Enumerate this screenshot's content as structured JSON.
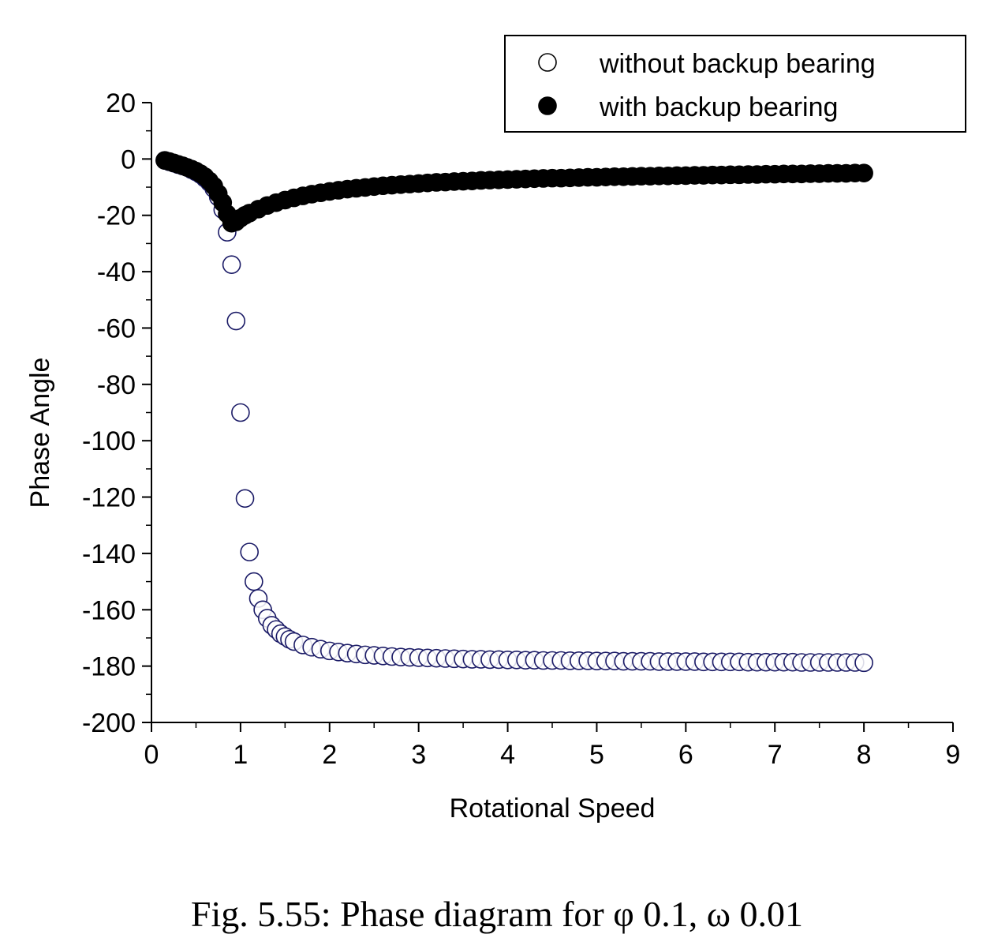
{
  "caption": "Fig. 5.55: Phase diagram for φ 0.1, ω 0.01",
  "chart_data": {
    "type": "scatter",
    "title": "",
    "xlabel": "Rotational Speed",
    "ylabel": "Phase Angle",
    "xlim": [
      0,
      9
    ],
    "ylim": [
      -200,
      20
    ],
    "xticks": [
      0,
      1,
      2,
      3,
      4,
      5,
      6,
      7,
      8,
      9
    ],
    "yticks": [
      20,
      0,
      -20,
      -40,
      -60,
      -80,
      -100,
      -120,
      -140,
      -160,
      -180,
      -200
    ],
    "grid": false,
    "legend_placement": "top-right",
    "series": [
      {
        "name": "without backup bearing",
        "marker": "open-circle",
        "color": "#1a1a66",
        "points": [
          [
            0.15,
            -0.5
          ],
          [
            0.2,
            -1.0
          ],
          [
            0.25,
            -1.5
          ],
          [
            0.3,
            -2.0
          ],
          [
            0.35,
            -2.5
          ],
          [
            0.4,
            -3.0
          ],
          [
            0.45,
            -3.8
          ],
          [
            0.5,
            -4.6
          ],
          [
            0.55,
            -5.5
          ],
          [
            0.6,
            -6.8
          ],
          [
            0.65,
            -8.3
          ],
          [
            0.7,
            -10.5
          ],
          [
            0.75,
            -13.5
          ],
          [
            0.8,
            -18.0
          ],
          [
            0.85,
            -26.0
          ],
          [
            0.9,
            -37.5
          ],
          [
            0.95,
            -57.5
          ],
          [
            1.0,
            -90.0
          ],
          [
            1.05,
            -120.5
          ],
          [
            1.1,
            -139.5
          ],
          [
            1.15,
            -150.0
          ],
          [
            1.2,
            -156.0
          ],
          [
            1.25,
            -160.0
          ],
          [
            1.3,
            -163.0
          ],
          [
            1.35,
            -165.5
          ],
          [
            1.4,
            -167.0
          ],
          [
            1.45,
            -168.5
          ],
          [
            1.5,
            -169.5
          ],
          [
            1.55,
            -170.5
          ],
          [
            1.6,
            -171.3
          ],
          [
            1.7,
            -172.5
          ],
          [
            1.8,
            -173.3
          ],
          [
            1.9,
            -174.0
          ],
          [
            2.0,
            -174.6
          ],
          [
            2.1,
            -175.0
          ],
          [
            2.2,
            -175.4
          ],
          [
            2.3,
            -175.7
          ],
          [
            2.4,
            -176.0
          ],
          [
            2.5,
            -176.2
          ],
          [
            2.6,
            -176.4
          ],
          [
            2.7,
            -176.6
          ],
          [
            2.8,
            -176.8
          ],
          [
            2.9,
            -176.9
          ],
          [
            3.0,
            -177.0
          ],
          [
            3.1,
            -177.1
          ],
          [
            3.2,
            -177.2
          ],
          [
            3.3,
            -177.3
          ],
          [
            3.4,
            -177.4
          ],
          [
            3.5,
            -177.5
          ],
          [
            3.6,
            -177.6
          ],
          [
            3.7,
            -177.6
          ],
          [
            3.8,
            -177.7
          ],
          [
            3.9,
            -177.7
          ],
          [
            4.0,
            -177.8
          ],
          [
            4.1,
            -177.8
          ],
          [
            4.2,
            -177.9
          ],
          [
            4.3,
            -177.9
          ],
          [
            4.4,
            -178.0
          ],
          [
            4.5,
            -178.0
          ],
          [
            4.6,
            -178.0
          ],
          [
            4.7,
            -178.1
          ],
          [
            4.8,
            -178.1
          ],
          [
            4.9,
            -178.1
          ],
          [
            5.0,
            -178.2
          ],
          [
            5.1,
            -178.2
          ],
          [
            5.2,
            -178.2
          ],
          [
            5.3,
            -178.3
          ],
          [
            5.4,
            -178.3
          ],
          [
            5.5,
            -178.3
          ],
          [
            5.6,
            -178.3
          ],
          [
            5.7,
            -178.4
          ],
          [
            5.8,
            -178.4
          ],
          [
            5.9,
            -178.4
          ],
          [
            6.0,
            -178.4
          ],
          [
            6.1,
            -178.4
          ],
          [
            6.2,
            -178.5
          ],
          [
            6.3,
            -178.5
          ],
          [
            6.4,
            -178.5
          ],
          [
            6.5,
            -178.5
          ],
          [
            6.6,
            -178.5
          ],
          [
            6.7,
            -178.6
          ],
          [
            6.8,
            -178.6
          ],
          [
            6.9,
            -178.6
          ],
          [
            7.0,
            -178.6
          ],
          [
            7.1,
            -178.6
          ],
          [
            7.2,
            -178.6
          ],
          [
            7.3,
            -178.7
          ],
          [
            7.4,
            -178.7
          ],
          [
            7.5,
            -178.7
          ],
          [
            7.6,
            -178.7
          ],
          [
            7.7,
            -178.7
          ],
          [
            7.8,
            -178.7
          ],
          [
            7.9,
            -178.7
          ],
          [
            8.0,
            -178.8
          ]
        ]
      },
      {
        "name": "with backup bearing",
        "marker": "filled-circle",
        "color": "#000000",
        "points": [
          [
            0.15,
            -0.5
          ],
          [
            0.2,
            -0.9
          ],
          [
            0.25,
            -1.4
          ],
          [
            0.3,
            -1.9
          ],
          [
            0.35,
            -2.4
          ],
          [
            0.4,
            -3.0
          ],
          [
            0.45,
            -3.6
          ],
          [
            0.5,
            -4.3
          ],
          [
            0.55,
            -5.2
          ],
          [
            0.6,
            -6.3
          ],
          [
            0.65,
            -7.8
          ],
          [
            0.7,
            -9.6
          ],
          [
            0.75,
            -12.3
          ],
          [
            0.8,
            -15.5
          ],
          [
            0.85,
            -19.5
          ],
          [
            0.9,
            -22.8
          ],
          [
            0.95,
            -22.3
          ],
          [
            1.0,
            -21.0
          ],
          [
            1.05,
            -20.0
          ],
          [
            1.1,
            -19.2
          ],
          [
            1.2,
            -17.8
          ],
          [
            1.3,
            -16.5
          ],
          [
            1.4,
            -15.5
          ],
          [
            1.5,
            -14.6
          ],
          [
            1.6,
            -13.8
          ],
          [
            1.7,
            -13.1
          ],
          [
            1.8,
            -12.5
          ],
          [
            1.9,
            -12.0
          ],
          [
            2.0,
            -11.5
          ],
          [
            2.1,
            -11.1
          ],
          [
            2.2,
            -10.7
          ],
          [
            2.3,
            -10.4
          ],
          [
            2.4,
            -10.1
          ],
          [
            2.5,
            -9.8
          ],
          [
            2.6,
            -9.5
          ],
          [
            2.7,
            -9.3
          ],
          [
            2.8,
            -9.1
          ],
          [
            2.9,
            -8.9
          ],
          [
            3.0,
            -8.7
          ],
          [
            3.1,
            -8.5
          ],
          [
            3.2,
            -8.3
          ],
          [
            3.3,
            -8.2
          ],
          [
            3.4,
            -8.0
          ],
          [
            3.5,
            -7.9
          ],
          [
            3.6,
            -7.8
          ],
          [
            3.7,
            -7.6
          ],
          [
            3.8,
            -7.5
          ],
          [
            3.9,
            -7.4
          ],
          [
            4.0,
            -7.3
          ],
          [
            4.1,
            -7.2
          ],
          [
            4.2,
            -7.1
          ],
          [
            4.3,
            -7.0
          ],
          [
            4.4,
            -6.9
          ],
          [
            4.5,
            -6.8
          ],
          [
            4.6,
            -6.8
          ],
          [
            4.7,
            -6.7
          ],
          [
            4.8,
            -6.6
          ],
          [
            4.9,
            -6.5
          ],
          [
            5.0,
            -6.5
          ],
          [
            5.1,
            -6.4
          ],
          [
            5.2,
            -6.3
          ],
          [
            5.3,
            -6.3
          ],
          [
            5.4,
            -6.2
          ],
          [
            5.5,
            -6.1
          ],
          [
            5.6,
            -6.1
          ],
          [
            5.7,
            -6.0
          ],
          [
            5.8,
            -6.0
          ],
          [
            5.9,
            -5.9
          ],
          [
            6.0,
            -5.9
          ],
          [
            6.1,
            -5.8
          ],
          [
            6.2,
            -5.8
          ],
          [
            6.3,
            -5.7
          ],
          [
            6.4,
            -5.7
          ],
          [
            6.5,
            -5.6
          ],
          [
            6.6,
            -5.6
          ],
          [
            6.7,
            -5.5
          ],
          [
            6.8,
            -5.5
          ],
          [
            6.9,
            -5.4
          ],
          [
            7.0,
            -5.4
          ],
          [
            7.1,
            -5.3
          ],
          [
            7.2,
            -5.3
          ],
          [
            7.3,
            -5.3
          ],
          [
            7.4,
            -5.2
          ],
          [
            7.5,
            -5.2
          ],
          [
            7.6,
            -5.1
          ],
          [
            7.7,
            -5.1
          ],
          [
            7.8,
            -5.1
          ],
          [
            7.9,
            -5.0
          ],
          [
            8.0,
            -5.0
          ]
        ]
      }
    ]
  }
}
